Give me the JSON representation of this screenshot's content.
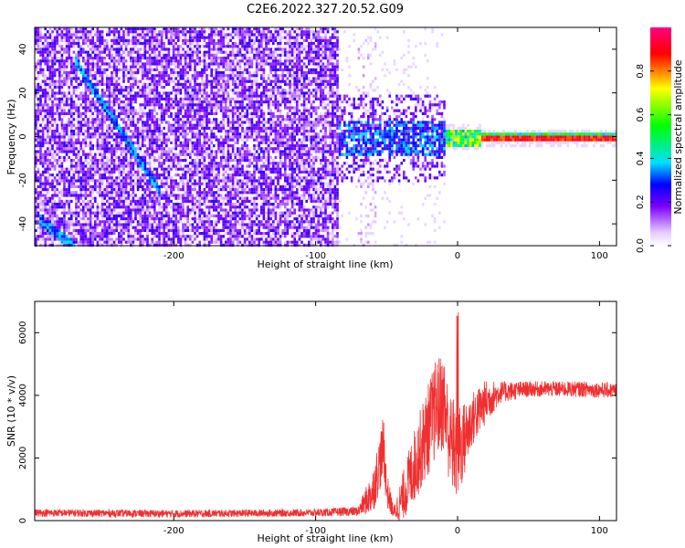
{
  "title": "C2E6.2022.327.20.52.G09",
  "chart_data": [
    {
      "type": "heatmap",
      "xlabel": "Height of straight line (km)",
      "ylabel": "Frequency (Hz)",
      "xlim": [
        -298,
        112
      ],
      "ylim": [
        -50,
        50
      ],
      "xticks": [
        -200,
        -100,
        0,
        100
      ],
      "xtick_labels": [
        "-200",
        "-100",
        "0",
        "100"
      ],
      "yticks": [
        -40,
        -20,
        0,
        20,
        40
      ],
      "ytick_labels": [
        "-40",
        "-20",
        "0",
        "20",
        "40"
      ],
      "colorbar": {
        "label": "Normalized spectral amplitude",
        "range": [
          0,
          1
        ],
        "ticks": [
          0.0,
          0.2,
          0.4,
          0.6,
          0.8
        ],
        "tick_labels": [
          "0.0",
          "0.2",
          "0.4",
          "0.6",
          "0.8"
        ],
        "colors": [
          "#ffffff",
          "#e6ccff",
          "#7a00ff",
          "#0000ff",
          "#00e0ff",
          "#00ff00",
          "#ffff00",
          "#ff0000",
          "#ff0080"
        ]
      },
      "features": [
        {
          "name": "diagonal track",
          "x": [
            -270,
            -210
          ],
          "y": [
            35,
            -25
          ]
        },
        {
          "name": "diagonal track",
          "x": [
            -295,
            -270
          ],
          "y": [
            -38,
            -50
          ]
        },
        {
          "name": "noise floor region",
          "x": [
            -298,
            -85
          ],
          "y": [
            -50,
            50
          ]
        },
        {
          "name": "broadband burst",
          "x": [
            -85,
            -10
          ],
          "y": [
            -25,
            25
          ]
        },
        {
          "name": "carrier line",
          "x": [
            -10,
            112
          ],
          "y": [
            0,
            0
          ]
        }
      ]
    },
    {
      "type": "line",
      "xlabel": "Height of straight line (km)",
      "ylabel": "SNR (10 * v/v)",
      "xlim": [
        -298,
        112
      ],
      "ylim": [
        0,
        7000
      ],
      "xticks": [
        -200,
        -100,
        0,
        100
      ],
      "xtick_labels": [
        "-200",
        "-100",
        "0",
        "100"
      ],
      "yticks": [
        0,
        2000,
        4000,
        6000
      ],
      "ytick_labels": [
        "0",
        "2000",
        "4000",
        "6000"
      ],
      "color": "#f03030",
      "series": [
        {
          "x": [
            -298,
            -200,
            -100,
            -70,
            -60,
            -55,
            -52,
            -50,
            -45,
            -40,
            -30,
            -20,
            -15,
            -10,
            -5,
            0,
            5,
            10,
            20,
            30,
            50,
            70,
            90,
            112
          ],
          "y": [
            250,
            220,
            250,
            300,
            900,
            1800,
            2400,
            1000,
            250,
            600,
            1800,
            3000,
            3600,
            3800,
            2500,
            2200,
            2600,
            3200,
            3800,
            4100,
            4200,
            4200,
            4200,
            4150
          ],
          "noise": [
            120,
            120,
            120,
            150,
            700,
            900,
            1000,
            600,
            200,
            700,
            1200,
            1500,
            1600,
            1600,
            1500,
            1700,
            1200,
            900,
            700,
            350,
            250,
            250,
            250,
            250
          ]
        }
      ]
    }
  ]
}
